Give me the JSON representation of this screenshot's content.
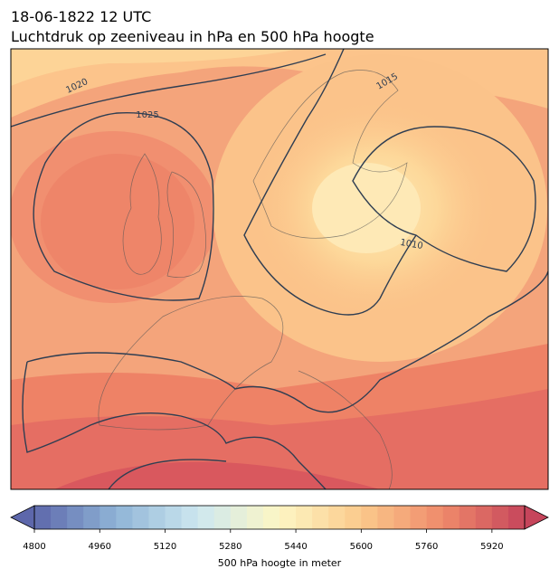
{
  "title": "18-06-1822 12 UTC",
  "subtitle": "Luchtdruk op zeeniveau in hPa en 500 hPa hoogte",
  "map": {
    "contour_labels": [
      "1020",
      "1025",
      "1015",
      "1010"
    ]
  },
  "colorbar": {
    "label": "500 hPa hoogte in meter",
    "range": [
      4800,
      6000
    ],
    "step": 40,
    "ticks": [
      4800,
      4960,
      5120,
      5280,
      5440,
      5600,
      5760,
      5920
    ],
    "colors": [
      "#5d67ab",
      "#8fb4d6",
      "#cde7f0",
      "#fdf6c4",
      "#fbc98b",
      "#ef8a6b",
      "#c6455b"
    ]
  }
}
